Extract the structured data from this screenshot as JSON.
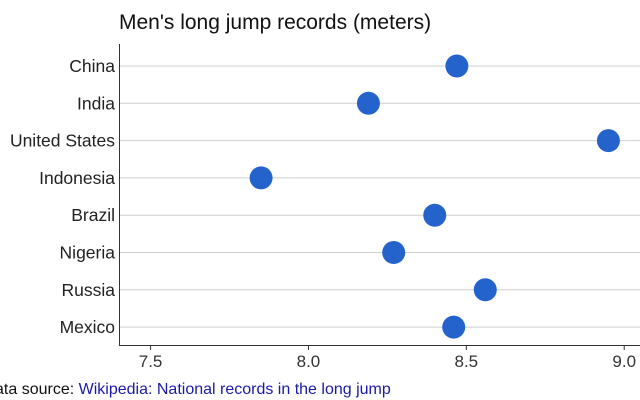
{
  "chart_data": {
    "type": "scatter",
    "title": "Men's long jump records (meters)",
    "categories": [
      "China",
      "India",
      "United States",
      "Indonesia",
      "Brazil",
      "Nigeria",
      "Russia",
      "Mexico"
    ],
    "values": [
      8.47,
      8.19,
      8.95,
      7.85,
      8.4,
      8.27,
      8.56,
      8.46
    ],
    "xlim": [
      7.4,
      9.05
    ],
    "xticks": [
      7.5,
      8.0,
      8.5,
      9.0
    ],
    "xtick_labels": [
      "7.5",
      "8.0",
      "8.5",
      "9.0"
    ],
    "grid": "horizontal",
    "color": "#2563cc"
  },
  "footer": {
    "source_label": "ata source:",
    "source_link_text": "Wikipedia: National records in the long jump"
  }
}
